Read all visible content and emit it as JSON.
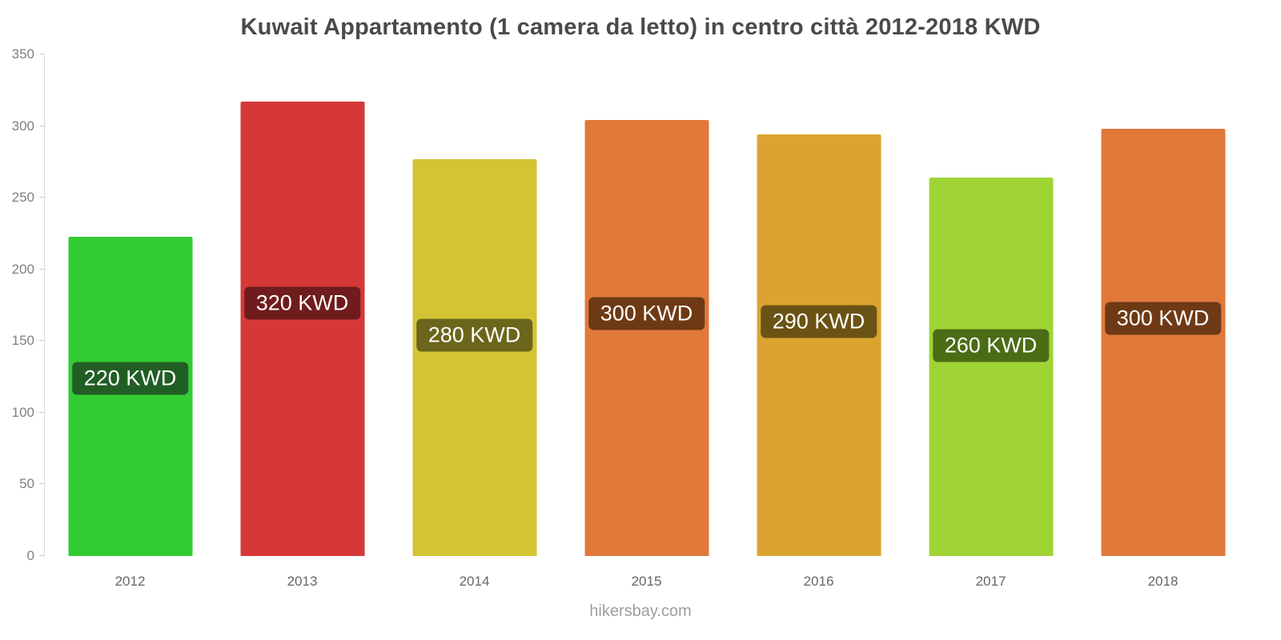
{
  "chart_data": {
    "type": "bar",
    "title": "Kuwait Appartamento (1 camera da letto) in centro città 2012-2018 KWD",
    "categories": [
      "2012",
      "2013",
      "2014",
      "2015",
      "2016",
      "2017",
      "2018"
    ],
    "values": [
      223,
      317,
      277,
      304,
      294,
      264,
      298
    ],
    "data_labels": [
      "220 KWD",
      "320 KWD",
      "280 KWD",
      "300 KWD",
      "290 KWD",
      "260 KWD",
      "300 KWD"
    ],
    "bar_colors": [
      "#33cc33",
      "#d63838",
      "#d4c433",
      "#e0793a",
      "#dba430",
      "#a0d435",
      "#e0793a"
    ],
    "label_bg_colors": [
      "#215e24",
      "#701c1c",
      "#6b661c",
      "#6e3a15",
      "#6b5315",
      "#4b6b15",
      "#6e3a15"
    ],
    "xlabel": "",
    "ylabel": "",
    "ylim": [
      0,
      350
    ],
    "yticks": [
      0,
      50,
      100,
      150,
      200,
      250,
      300,
      350
    ],
    "grid": "off",
    "legend": "none"
  },
  "footer": {
    "text": "hikersbay.com"
  }
}
